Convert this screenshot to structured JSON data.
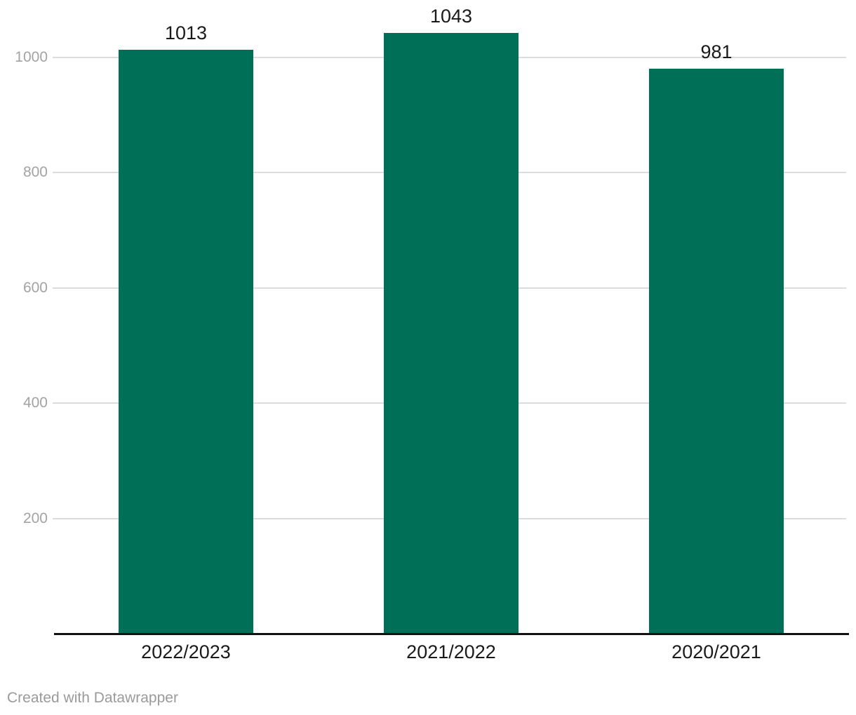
{
  "chart_data": {
    "type": "bar",
    "categories": [
      "2022/2023",
      "2021/2022",
      "2020/2021"
    ],
    "values": [
      1013,
      1043,
      981
    ],
    "value_labels": [
      "1013",
      "1043",
      "981"
    ],
    "title": "",
    "xlabel": "",
    "ylabel": "",
    "ylim": [
      0,
      1100
    ],
    "yticks": [
      200,
      400,
      600,
      800,
      1000
    ],
    "grid": "horizontal",
    "legend": "none",
    "colors": {
      "bar": "#006f58",
      "gridline": "#dcdcdc",
      "axis_line": "#111111",
      "tick_label": "#a3a3a3",
      "value_label": "#1a1a1a",
      "category_label": "#1a1a1a",
      "footer_text": "#9a9a9a",
      "background": "#ffffff"
    }
  },
  "footer": {
    "credit": "Created with Datawrapper"
  }
}
